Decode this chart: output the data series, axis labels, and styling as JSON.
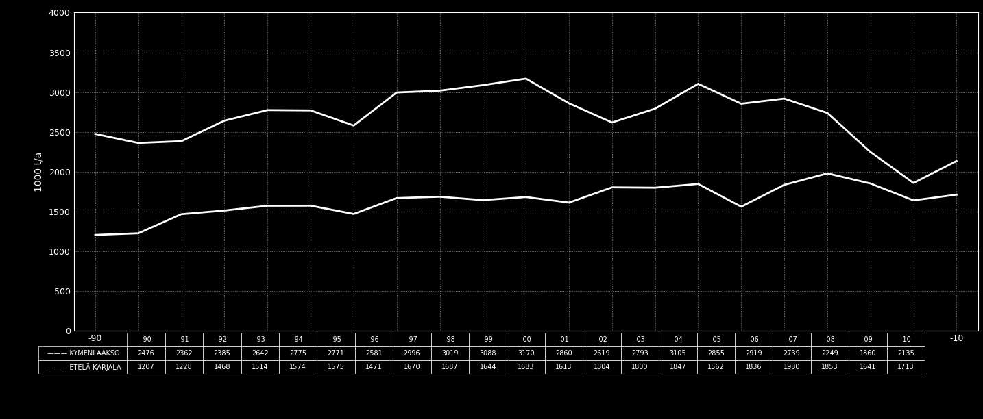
{
  "categories": [
    "-90",
    "-91",
    "-92",
    "-93",
    "-94",
    "-95",
    "-96",
    "-97",
    "-98",
    "-99",
    "-00",
    "-01",
    "-02",
    "-03",
    "-04",
    "-05",
    "-06",
    "-07",
    "-08",
    "-09",
    "-10"
  ],
  "kymenlaakso": [
    2476,
    2362,
    2385,
    2642,
    2775,
    2771,
    2581,
    2996,
    3019,
    3088,
    3170,
    2860,
    2619,
    2793,
    3105,
    2855,
    2919,
    2739,
    2249,
    1860,
    2135
  ],
  "etela_karjala": [
    1207,
    1228,
    1468,
    1514,
    1574,
    1575,
    1471,
    1670,
    1687,
    1644,
    1683,
    1613,
    1804,
    1800,
    1847,
    1562,
    1836,
    1980,
    1853,
    1641,
    1713
  ],
  "legend_kymenlaakso": "KYMENLAAKSO",
  "legend_etela_karjala": "ETELÄ-KARJALA",
  "ylabel": "1000 t/a",
  "ylim": [
    0,
    4000
  ],
  "yticks": [
    0,
    500,
    1000,
    1500,
    2000,
    2500,
    3000,
    3500,
    4000
  ],
  "background_color": "#000000",
  "line_color": "#ffffff",
  "grid_color": "#888888",
  "text_color": "#ffffff",
  "line_width": 2.0,
  "table_font_size": 7.0,
  "axis_font_size": 9.0
}
